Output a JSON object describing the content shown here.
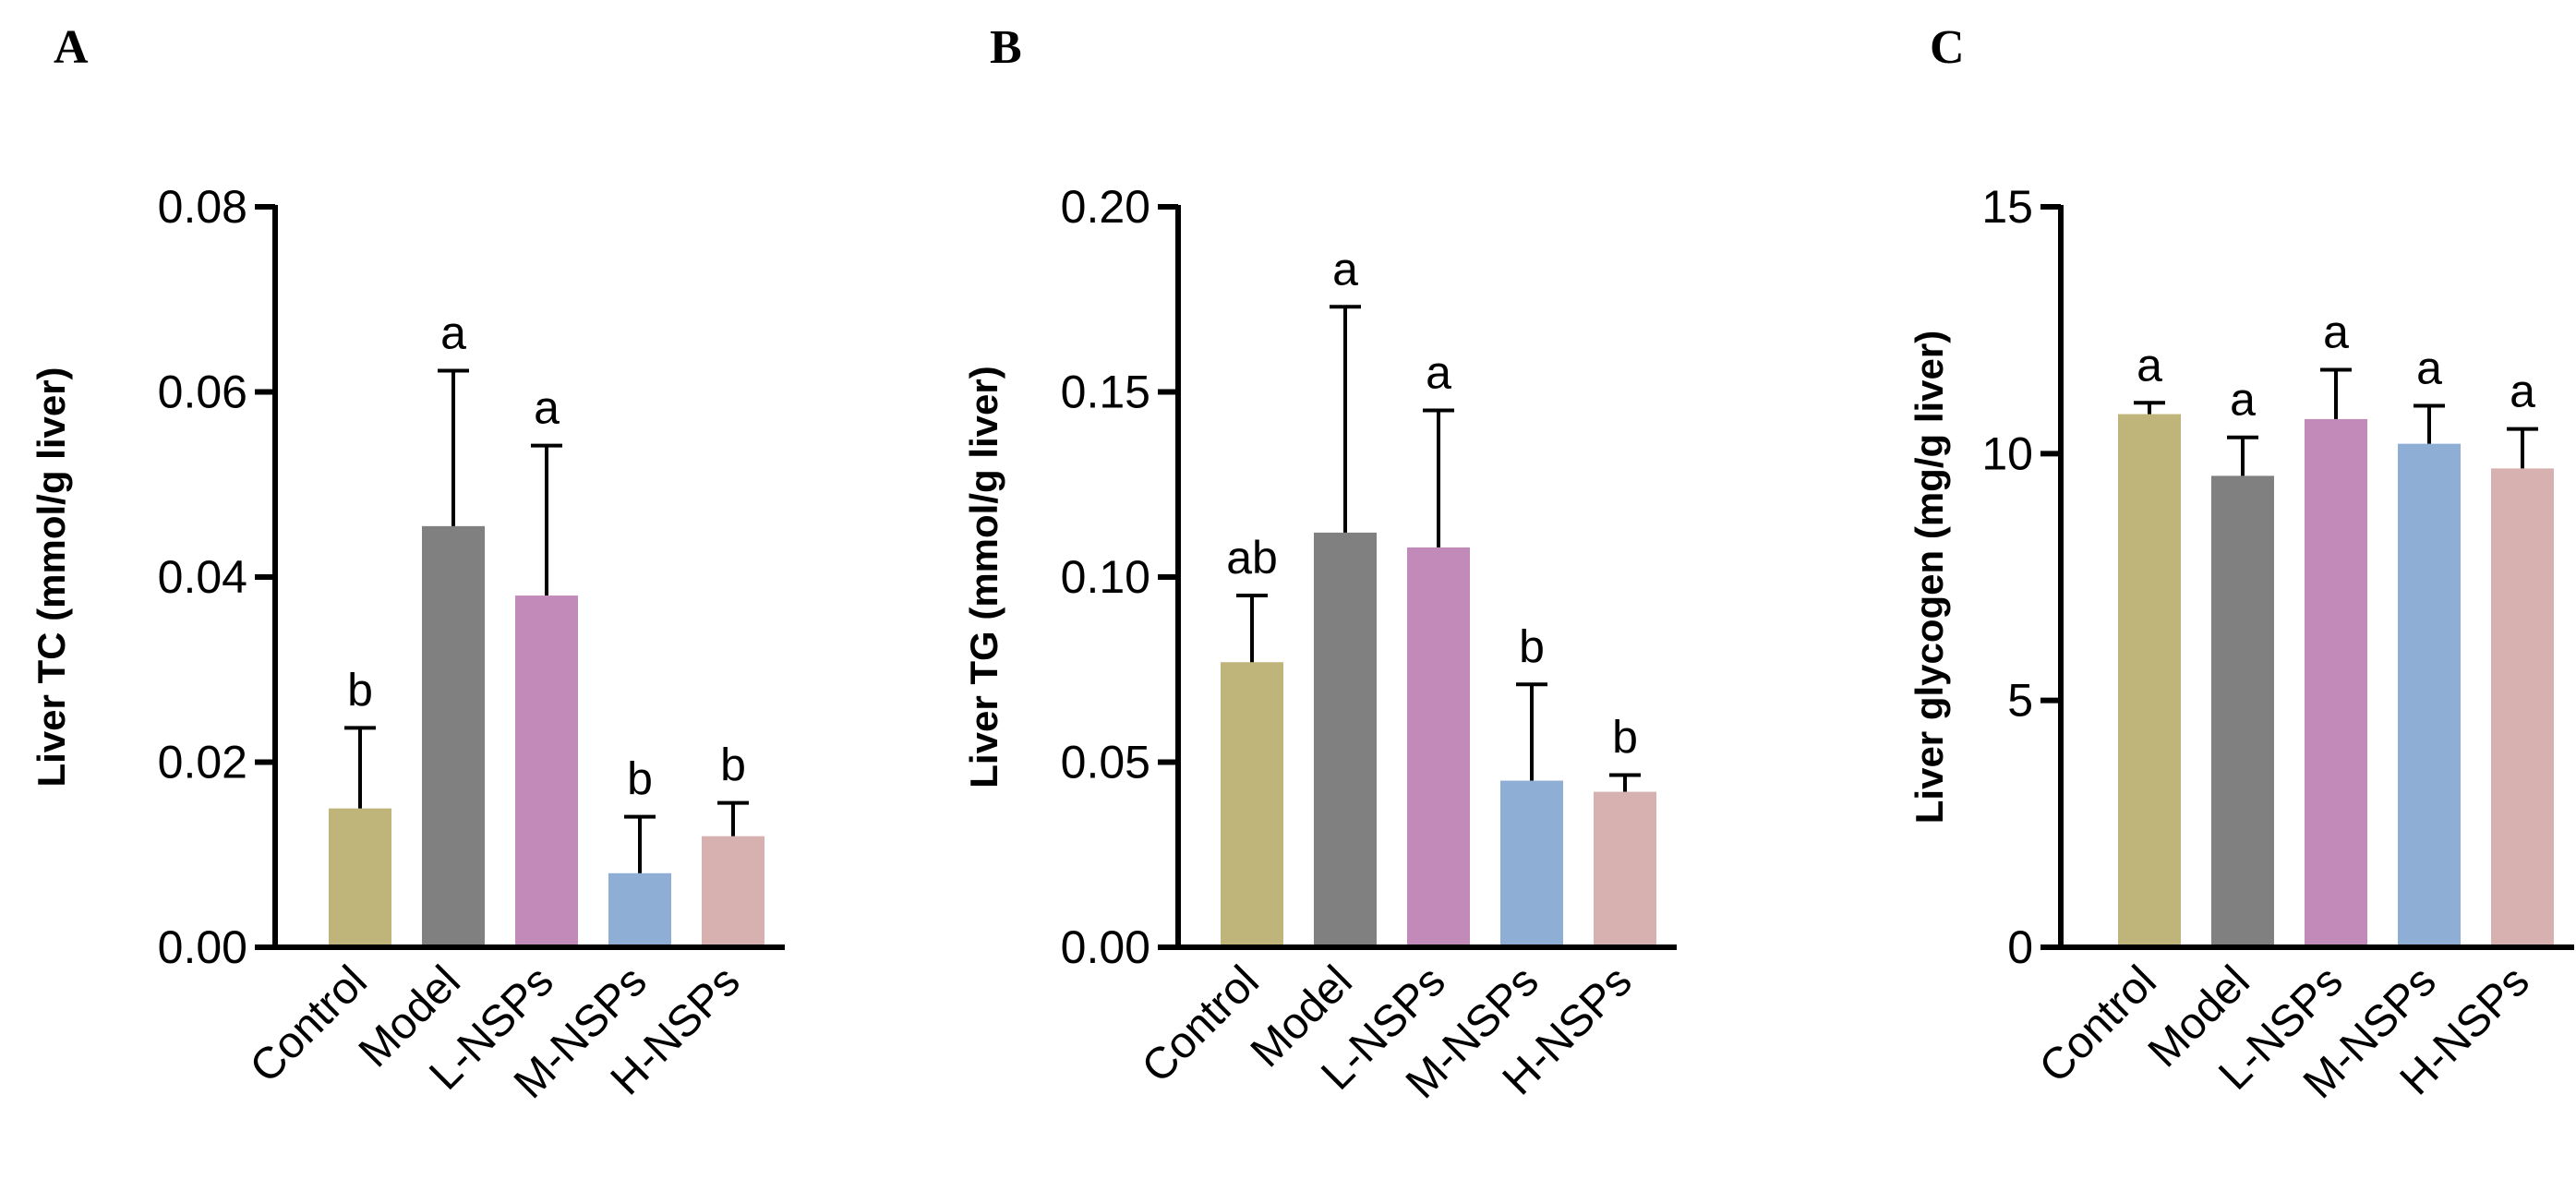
{
  "chart_data": [
    {
      "type": "bar",
      "panel": "A",
      "categories": [
        "Control",
        "Model",
        "L-NSPs",
        "M-NSPs",
        "H-NSPs"
      ],
      "values": [
        0.015,
        0.0455,
        0.038,
        0.008,
        0.012
      ],
      "errors": [
        0.0087,
        0.0168,
        0.0162,
        0.0061,
        0.0036
      ],
      "significance": [
        "b",
        "a",
        "a",
        "b",
        "b"
      ],
      "colors": [
        "#bfb47a",
        "#808080",
        "#c18ab9",
        "#8eaed5",
        "#d7b0b0"
      ],
      "ylabel": "Liver TC (mmol/g liver)",
      "xlabel": "",
      "ylim": [
        0,
        0.08
      ],
      "yticks": [
        0.0,
        0.02,
        0.04,
        0.06,
        0.08
      ],
      "yticklabels": [
        "0.00",
        "0.02",
        "0.04",
        "0.06",
        "0.08"
      ]
    },
    {
      "type": "bar",
      "panel": "B",
      "categories": [
        "Control",
        "Model",
        "L-NSPs",
        "M-NSPs",
        "H-NSPs"
      ],
      "values": [
        0.077,
        0.112,
        0.108,
        0.045,
        0.042
      ],
      "errors": [
        0.018,
        0.061,
        0.037,
        0.026,
        0.0045
      ],
      "significance": [
        "ab",
        "a",
        "a",
        "b",
        "b"
      ],
      "colors": [
        "#bfb47a",
        "#808080",
        "#c18ab9",
        "#8eaed5",
        "#d7b0b0"
      ],
      "ylabel": "Liver TG (mmol/g liver)",
      "xlabel": "",
      "ylim": [
        0,
        0.2
      ],
      "yticks": [
        0.0,
        0.05,
        0.1,
        0.15,
        0.2
      ],
      "yticklabels": [
        "0.00",
        "0.05",
        "0.10",
        "0.15",
        "0.20"
      ]
    },
    {
      "type": "bar",
      "panel": "C",
      "categories": [
        "Control",
        "Model",
        "L-NSPs",
        "M-NSPs",
        "H-NSPs"
      ],
      "values": [
        10.8,
        9.55,
        10.7,
        10.2,
        9.7
      ],
      "errors": [
        0.23,
        0.78,
        1.0,
        0.77,
        0.8
      ],
      "significance": [
        "a",
        "a",
        "a",
        "a",
        "a"
      ],
      "colors": [
        "#bfb47a",
        "#808080",
        "#c18ab9",
        "#8eaed5",
        "#d7b0b0"
      ],
      "ylabel": "Liver glycogen (mg/g liver)",
      "xlabel": "",
      "ylim": [
        0,
        15
      ],
      "yticks": [
        0,
        5,
        10,
        15
      ],
      "yticklabels": [
        "0",
        "5",
        "10",
        "15"
      ]
    }
  ]
}
